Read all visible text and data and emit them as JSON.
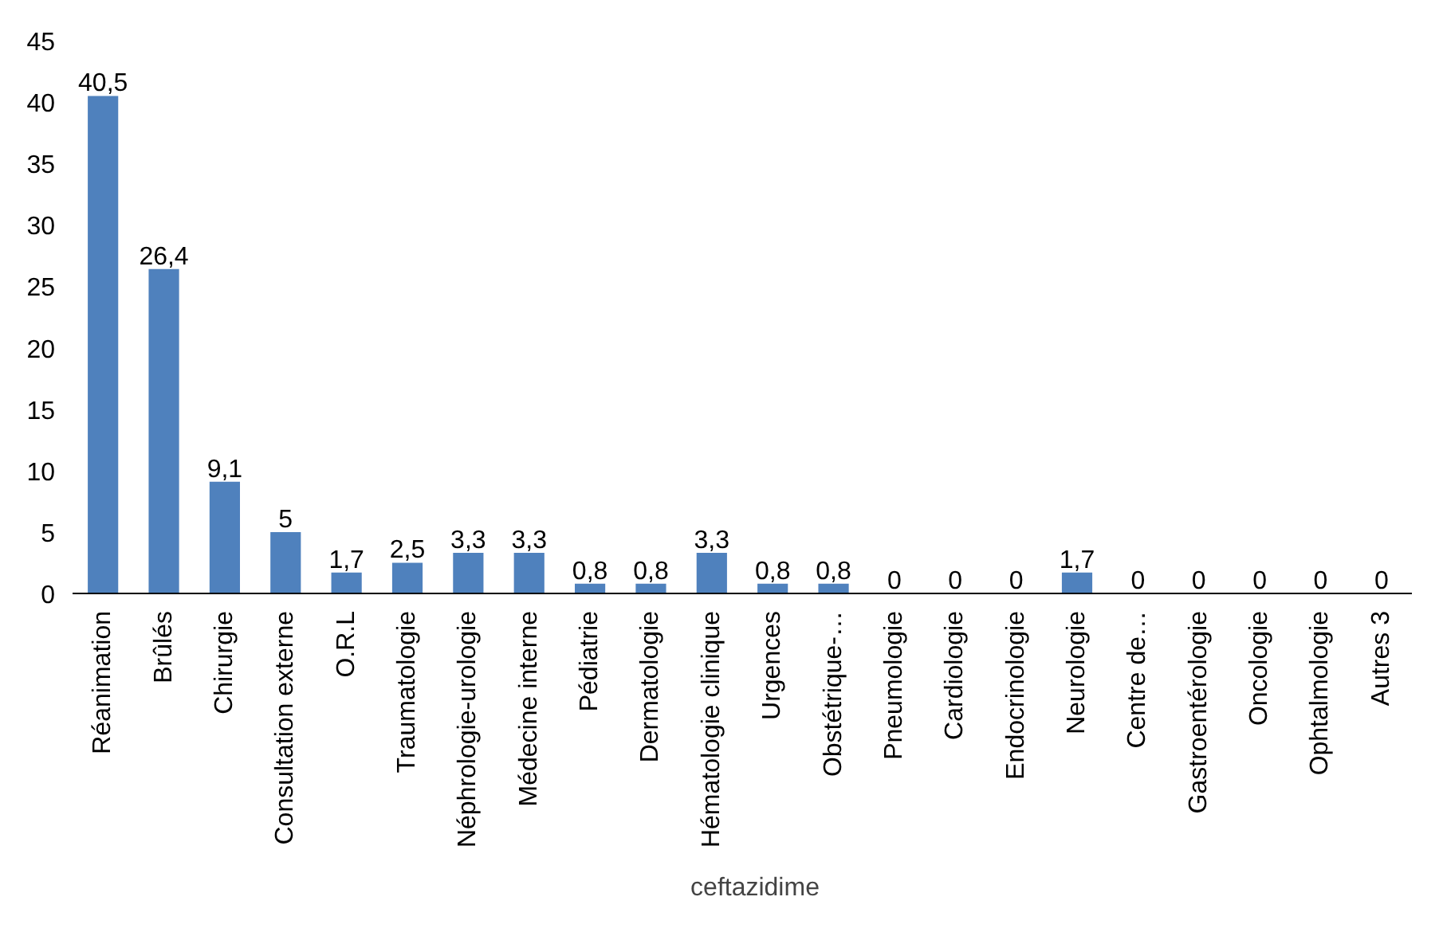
{
  "chart_data": {
    "type": "bar",
    "categories": [
      "Réanimation",
      "Brûlés",
      "Chirurgie",
      "Consultation externe",
      "O.R.L",
      "Traumatologie",
      "Néphrologie-urologie",
      "Médecine interne",
      "Pédiatrie",
      "Dermatologie",
      "Hématologie clinique",
      "Urgences",
      "Obstétrique-…",
      "Pneumologie",
      "Cardiologie",
      "Endocrinologie",
      "Neurologie",
      "Centre de…",
      "Gastroentérologie",
      "Oncologie",
      "Ophtalmologie",
      "Autres 3"
    ],
    "series": [
      {
        "name": "ceftazidime",
        "color": "#4f81bd",
        "values": [
          40.5,
          26.4,
          9.1,
          5,
          1.7,
          2.5,
          3.3,
          3.3,
          0.8,
          0.8,
          3.3,
          0.8,
          0.8,
          0,
          0,
          0,
          1.7,
          0,
          0,
          0,
          0,
          0
        ],
        "value_labels": [
          "40,5",
          "26,4",
          "9,1",
          "5",
          "1,7",
          "2,5",
          "3,3",
          "3,3",
          "0,8",
          "0,8",
          "3,3",
          "0,8",
          "0,8",
          "0",
          "0",
          "0",
          "1,7",
          "0",
          "0",
          "0",
          "0",
          "0"
        ]
      }
    ],
    "ylim": [
      0,
      45
    ],
    "yticks": [
      0,
      5,
      10,
      15,
      20,
      25,
      30,
      35,
      40,
      45
    ],
    "grid": false,
    "legend": "bottom"
  }
}
